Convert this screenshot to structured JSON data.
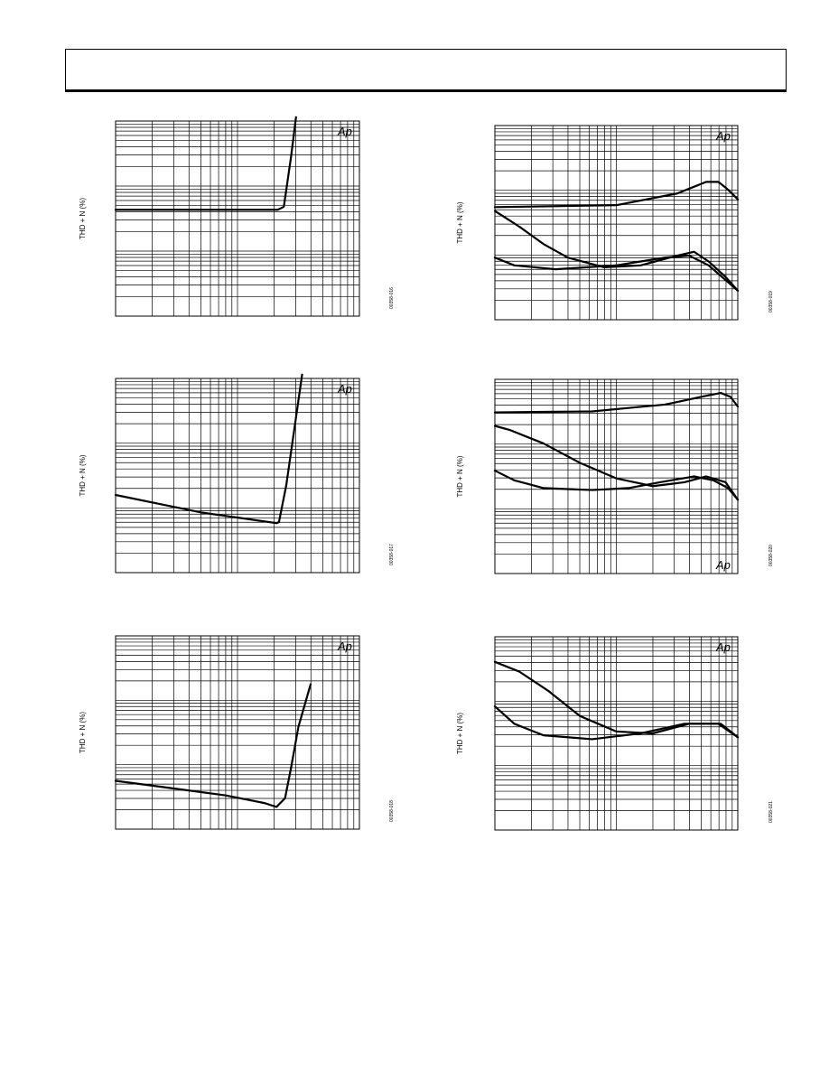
{
  "page": {
    "header_text": ""
  },
  "logo_text": "Ap",
  "chart_data": [
    {
      "type": "line",
      "ylabel": "THD + N (%)",
      "figure_code": "00358-016",
      "xscale": "log",
      "yscale": "log",
      "series": [
        {
          "values": [
            [
              0,
              0.455
            ],
            [
              0.42,
              0.455
            ],
            [
              0.665,
              0.455
            ],
            [
              0.69,
              0.44
            ],
            [
              0.72,
              0.18
            ],
            [
              0.74,
              -0.02
            ]
          ]
        }
      ]
    },
    {
      "type": "line",
      "ylabel": "THD + N (%)",
      "figure_code": "00358-017",
      "xscale": "log",
      "yscale": "log",
      "series": [
        {
          "values": [
            [
              0,
              0.6
            ],
            [
              0.35,
              0.69
            ],
            [
              0.66,
              0.745
            ],
            [
              0.67,
              0.74
            ],
            [
              0.7,
              0.55
            ],
            [
              0.74,
              0.2
            ],
            [
              0.765,
              -0.02
            ]
          ]
        }
      ]
    },
    {
      "type": "line",
      "ylabel": "THD + N (%)",
      "figure_code": "00358-018",
      "xscale": "log",
      "yscale": "log",
      "series": [
        {
          "values": [
            [
              0,
              0.75
            ],
            [
              0.45,
              0.825
            ],
            [
              0.61,
              0.865
            ],
            [
              0.66,
              0.885
            ],
            [
              0.695,
              0.84
            ],
            [
              0.72,
              0.68
            ],
            [
              0.75,
              0.47
            ],
            [
              0.8,
              0.25
            ]
          ]
        }
      ]
    },
    {
      "type": "line",
      "ylabel": "THD + N (%)",
      "figure_code": "00358-019",
      "xscale": "log",
      "yscale": "log",
      "series": [
        {
          "values": [
            [
              0,
              0.42
            ],
            [
              0.5,
              0.41
            ],
            [
              0.75,
              0.35
            ],
            [
              0.87,
              0.29
            ],
            [
              0.92,
              0.29
            ],
            [
              0.96,
              0.33
            ],
            [
              1,
              0.38
            ]
          ]
        },
        {
          "values": [
            [
              0,
              0.44
            ],
            [
              0.1,
              0.52
            ],
            [
              0.2,
              0.61
            ],
            [
              0.3,
              0.68
            ],
            [
              0.45,
              0.73
            ],
            [
              0.6,
              0.72
            ],
            [
              0.75,
              0.67
            ],
            [
              0.82,
              0.65
            ],
            [
              0.88,
              0.7
            ],
            [
              0.95,
              0.78
            ],
            [
              1,
              0.85
            ]
          ]
        },
        {
          "values": [
            [
              0,
              0.68
            ],
            [
              0.08,
              0.72
            ],
            [
              0.25,
              0.74
            ],
            [
              0.5,
              0.72
            ],
            [
              0.7,
              0.68
            ],
            [
              0.8,
              0.67
            ],
            [
              0.88,
              0.72
            ],
            [
              1,
              0.85
            ]
          ]
        }
      ]
    },
    {
      "type": "line",
      "ylabel": "THD + N (%)",
      "figure_code": "00358-020",
      "xscale": "log",
      "yscale": "log",
      "series": [
        {
          "values": [
            [
              0,
              0.17
            ],
            [
              0.4,
              0.165
            ],
            [
              0.7,
              0.13
            ],
            [
              0.85,
              0.09
            ],
            [
              0.93,
              0.07
            ],
            [
              0.97,
              0.09
            ],
            [
              1,
              0.14
            ]
          ]
        },
        {
          "values": [
            [
              0,
              0.24
            ],
            [
              0.06,
              0.26
            ],
            [
              0.2,
              0.33
            ],
            [
              0.35,
              0.43
            ],
            [
              0.5,
              0.51
            ],
            [
              0.65,
              0.55
            ],
            [
              0.78,
              0.53
            ],
            [
              0.87,
              0.5
            ],
            [
              0.95,
              0.53
            ],
            [
              1,
              0.62
            ]
          ]
        },
        {
          "values": [
            [
              0,
              0.47
            ],
            [
              0.08,
              0.52
            ],
            [
              0.2,
              0.56
            ],
            [
              0.4,
              0.57
            ],
            [
              0.55,
              0.56
            ],
            [
              0.68,
              0.53
            ],
            [
              0.82,
              0.5
            ],
            [
              0.9,
              0.52
            ],
            [
              0.96,
              0.56
            ],
            [
              1,
              0.62
            ]
          ]
        }
      ]
    },
    {
      "type": "line",
      "ylabel": "THD + N (%)",
      "figure_code": "00358-021",
      "xscale": "log",
      "yscale": "log",
      "series": [
        {
          "values": [
            [
              0,
              0.13
            ],
            [
              0.1,
              0.18
            ],
            [
              0.22,
              0.28
            ],
            [
              0.35,
              0.41
            ],
            [
              0.5,
              0.49
            ],
            [
              0.65,
              0.5
            ],
            [
              0.8,
              0.45
            ],
            [
              0.92,
              0.45
            ],
            [
              1,
              0.52
            ]
          ]
        },
        {
          "values": [
            [
              0,
              0.36
            ],
            [
              0.08,
              0.45
            ],
            [
              0.2,
              0.51
            ],
            [
              0.4,
              0.53
            ],
            [
              0.6,
              0.5
            ],
            [
              0.78,
              0.45
            ],
            [
              0.93,
              0.45
            ],
            [
              1,
              0.52
            ]
          ]
        }
      ]
    }
  ]
}
